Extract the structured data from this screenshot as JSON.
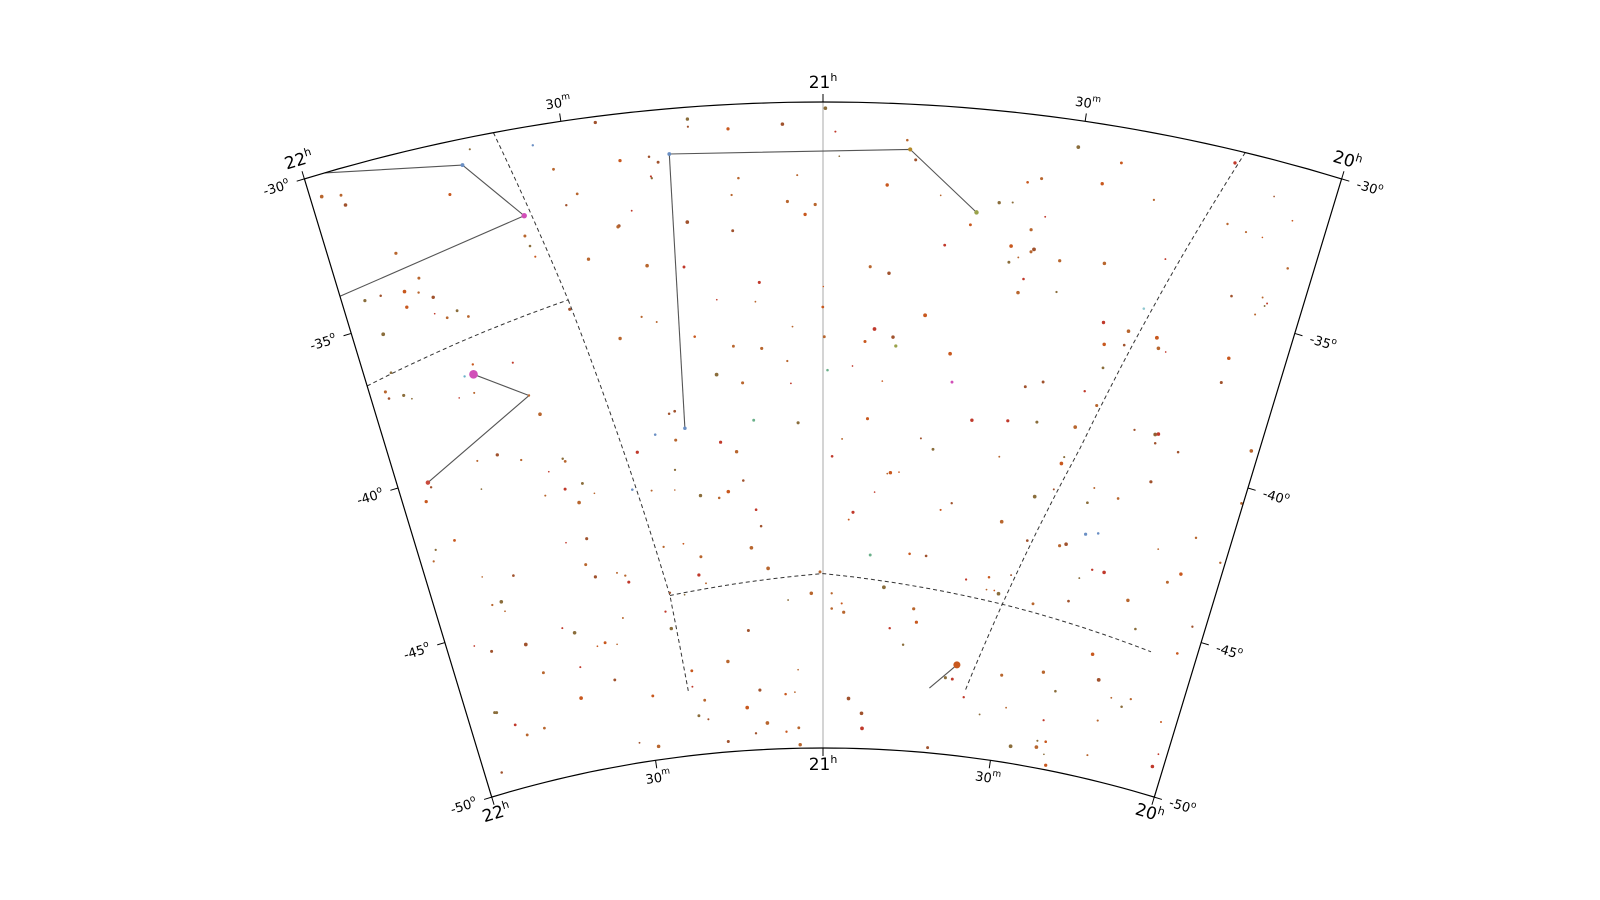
{
  "chart_data": {
    "type": "scatter",
    "projection": "conic sky chart (right ascension vs declination)",
    "ra_range_hours": [
      20,
      22
    ],
    "dec_range_deg": [
      -50,
      -30
    ],
    "grid": true,
    "ra_ticks": [
      {
        "ra": 22.0,
        "label": "22",
        "unit": "h",
        "major": true
      },
      {
        "ra": 21.5,
        "label": "30",
        "unit": "m",
        "major": false
      },
      {
        "ra": 21.0,
        "label": "21",
        "unit": "h",
        "major": true
      },
      {
        "ra": 20.5,
        "label": "30",
        "unit": "m",
        "major": false
      },
      {
        "ra": 20.0,
        "label": "20",
        "unit": "h",
        "major": true
      }
    ],
    "dec_ticks": [
      {
        "dec": -30,
        "label": "-30",
        "unit": "o"
      },
      {
        "dec": -35,
        "label": "-35",
        "unit": "o"
      },
      {
        "dec": -40,
        "label": "-40",
        "unit": "o"
      },
      {
        "dec": -45,
        "label": "-45",
        "unit": "o"
      },
      {
        "dec": -50,
        "label": "-50",
        "unit": "o"
      }
    ],
    "center_meridian_ra": 21.0,
    "constellation_boundaries": [
      [
        [
          21.63,
          -30.0
        ],
        [
          21.54,
          -35.5
        ]
      ],
      [
        [
          22.0,
          -36.7
        ],
        [
          21.54,
          -35.5
        ]
      ],
      [
        [
          21.54,
          -35.5
        ],
        [
          21.4,
          -45.0
        ],
        [
          21.38,
          -48.0
        ]
      ],
      [
        [
          21.4,
          -45.0
        ],
        [
          21.0,
          -44.6
        ],
        [
          20.5,
          -45.2
        ],
        [
          20.12,
          -45.7
        ]
      ],
      [
        [
          20.19,
          -30.0
        ],
        [
          20.4,
          -40.0
        ],
        [
          20.6,
          -48.0
        ]
      ]
    ],
    "constellation_lines": [
      [
        [
          21.96,
          -30.0
        ],
        [
          21.7,
          -30.8
        ],
        [
          21.6,
          -32.7
        ],
        [
          22.0,
          -33.8
        ]
      ],
      [
        [
          21.77,
          -37.2
        ],
        [
          21.66,
          -38.2
        ],
        [
          21.93,
          -40.1
        ]
      ],
      [
        [
          21.3,
          -31.4
        ],
        [
          20.83,
          -31.4
        ],
        [
          20.69,
          -33.2
        ]
      ],
      [
        [
          21.3,
          -31.4
        ],
        [
          21.32,
          -39.9
        ]
      ],
      [
        [
          20.63,
          -47.2
        ],
        [
          20.7,
          -48.0
        ]
      ]
    ],
    "stars": [
      {
        "ra": 21.7,
        "dec": -30.8,
        "mag": 4.0,
        "color": "#6a8fc4"
      },
      {
        "ra": 21.6,
        "dec": -32.7,
        "mag": 3.5,
        "color": "#d14fb8"
      },
      {
        "ra": 21.77,
        "dec": -37.2,
        "mag": 2.5,
        "color": "#d14fb8"
      },
      {
        "ra": 21.79,
        "dec": -37.2,
        "mag": 4.5,
        "color": "#6ab0c8"
      },
      {
        "ra": 21.93,
        "dec": -40.1,
        "mag": 3.8,
        "color": "#c84b3c"
      },
      {
        "ra": 21.66,
        "dec": -38.2,
        "mag": 4.6,
        "color": "#b8662e"
      },
      {
        "ra": 21.3,
        "dec": -31.4,
        "mag": 4.0,
        "color": "#6a8fc4"
      },
      {
        "ra": 20.83,
        "dec": -31.4,
        "mag": 3.9,
        "color": "#b38a2a"
      },
      {
        "ra": 20.69,
        "dec": -33.2,
        "mag": 3.8,
        "color": "#9aa24a"
      },
      {
        "ra": 21.32,
        "dec": -39.9,
        "mag": 4.1,
        "color": "#6a8fc4"
      },
      {
        "ra": 20.63,
        "dec": -47.2,
        "mag": 3.0,
        "color": "#c8581e"
      },
      {
        "ra": 20.7,
        "dec": -33.6,
        "mag": 4.3,
        "color": "#c8581e"
      },
      {
        "ra": 21.56,
        "dec": -30.6,
        "mag": 4.5,
        "color": "#6a8fc4"
      },
      {
        "ra": 20.32,
        "dec": -35.4,
        "mag": 4.4,
        "color": "#8fc8d0"
      },
      {
        "ra": 20.28,
        "dec": -36.2,
        "mag": 4.0,
        "color": "#c8581e"
      },
      {
        "ra": 20.35,
        "dec": -42.6,
        "mag": 4.2,
        "color": "#6a8fc4"
      },
      {
        "ra": 20.32,
        "dec": -42.5,
        "mag": 4.4,
        "color": "#6a8fc4"
      },
      {
        "ra": 20.78,
        "dec": -36.5,
        "mag": 4.0,
        "color": "#c8581e"
      },
      {
        "ra": 20.71,
        "dec": -38.5,
        "mag": 4.3,
        "color": "#d14fb8"
      },
      {
        "ra": 20.84,
        "dec": -37.5,
        "mag": 4.2,
        "color": "#9aa24a"
      },
      {
        "ra": 20.88,
        "dec": -44.0,
        "mag": 4.3,
        "color": "#6ab08a"
      },
      {
        "ra": 20.99,
        "dec": -38.3,
        "mag": 4.4,
        "color": "#6ab08a"
      },
      {
        "ra": 21.16,
        "dec": -39.8,
        "mag": 4.3,
        "color": "#6ab08a"
      },
      {
        "ra": 21.39,
        "dec": -40.0,
        "mag": 4.4,
        "color": "#6a8fc4"
      },
      {
        "ra": 21.46,
        "dec": -41.6,
        "mag": 4.4,
        "color": "#6a8fc4"
      },
      {
        "ra": 20.27,
        "dec": -46.2,
        "mag": 4.1,
        "color": "#c8581e"
      },
      {
        "ra": 20.12,
        "dec": -36.3,
        "mag": 4.1,
        "color": "#c8581e"
      },
      {
        "ra": 20.75,
        "dec": -46.0,
        "mag": 4.2,
        "color": "#c8581e"
      },
      {
        "ra": 21.28,
        "dec": -37.1,
        "mag": 4.4,
        "color": "#c8581e"
      },
      {
        "ra": 20.78,
        "dec": -43.9,
        "mag": 4.4,
        "color": "#c8581e"
      }
    ]
  }
}
